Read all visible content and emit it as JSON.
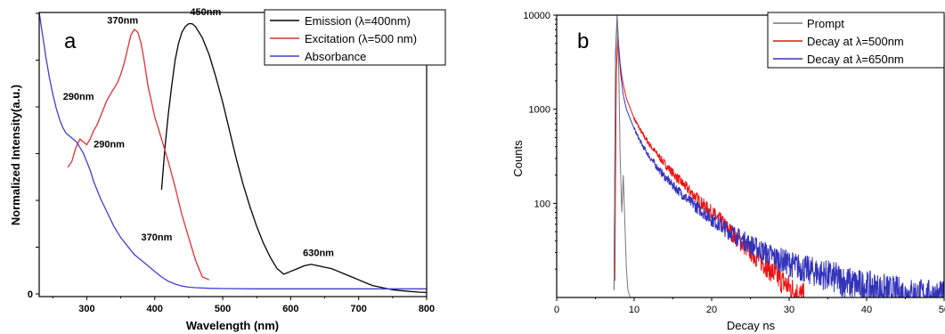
{
  "chart_data": [
    {
      "type": "line",
      "panel_label": "a",
      "xlabel": "Wavelength (nm)",
      "ylabel": "Normalized Intensity(a.u.)",
      "xlim": [
        230,
        800
      ],
      "ylim": [
        0,
        1.0
      ],
      "x_ticks": [
        "300",
        "400",
        "500",
        "600",
        "700",
        "800"
      ],
      "y_ticks": [
        "0"
      ],
      "legend_position": "top-right",
      "series": [
        {
          "name": "Emission (λ=400nm)",
          "color": "#000000",
          "x": [
            410,
            415,
            420,
            425,
            430,
            435,
            440,
            445,
            450,
            455,
            460,
            465,
            470,
            480,
            490,
            500,
            510,
            520,
            530,
            540,
            550,
            560,
            570,
            580,
            590,
            600,
            610,
            620,
            630,
            640,
            650,
            660,
            670,
            680,
            690,
            700,
            710,
            720,
            730,
            740,
            750,
            760,
            770,
            780,
            790,
            800
          ],
          "y": [
            0.37,
            0.52,
            0.64,
            0.74,
            0.83,
            0.89,
            0.93,
            0.95,
            0.96,
            0.96,
            0.95,
            0.93,
            0.91,
            0.85,
            0.77,
            0.68,
            0.58,
            0.48,
            0.39,
            0.31,
            0.24,
            0.18,
            0.13,
            0.09,
            0.07,
            0.08,
            0.09,
            0.1,
            0.105,
            0.1,
            0.095,
            0.09,
            0.08,
            0.07,
            0.06,
            0.05,
            0.04,
            0.03,
            0.025,
            0.02,
            0.015,
            0.012,
            0.01,
            0.008,
            0.006,
            0.005
          ]
        },
        {
          "name": "Excitation (λ=500 nm)",
          "color": "#e03030",
          "x": [
            272,
            278,
            284,
            290,
            295,
            300,
            305,
            310,
            315,
            320,
            325,
            330,
            335,
            340,
            345,
            350,
            355,
            360,
            365,
            370,
            375,
            380,
            385,
            390,
            400,
            410,
            420,
            430,
            440,
            450,
            460,
            470,
            480
          ],
          "y": [
            0.45,
            0.47,
            0.52,
            0.55,
            0.54,
            0.53,
            0.55,
            0.58,
            0.6,
            0.63,
            0.66,
            0.69,
            0.71,
            0.73,
            0.75,
            0.78,
            0.82,
            0.87,
            0.92,
            0.94,
            0.93,
            0.89,
            0.82,
            0.74,
            0.63,
            0.55,
            0.47,
            0.38,
            0.28,
            0.2,
            0.12,
            0.06,
            0.05
          ]
        },
        {
          "name": "Absorbance",
          "color": "#3f3fd0",
          "x": [
            230,
            235,
            240,
            245,
            250,
            255,
            260,
            265,
            270,
            275,
            280,
            285,
            290,
            295,
            300,
            305,
            310,
            320,
            330,
            340,
            350,
            360,
            370,
            380,
            390,
            400,
            410,
            420,
            430,
            440,
            450,
            460,
            480,
            500,
            550,
            600,
            650,
            700,
            750,
            800
          ],
          "y": [
            1.0,
            0.92,
            0.84,
            0.77,
            0.71,
            0.66,
            0.62,
            0.59,
            0.57,
            0.56,
            0.55,
            0.54,
            0.52,
            0.5,
            0.47,
            0.44,
            0.4,
            0.34,
            0.29,
            0.24,
            0.2,
            0.17,
            0.14,
            0.12,
            0.1,
            0.08,
            0.06,
            0.045,
            0.035,
            0.028,
            0.024,
            0.022,
            0.02,
            0.019,
            0.018,
            0.018,
            0.018,
            0.018,
            0.018,
            0.018
          ]
        }
      ],
      "annotations": [
        {
          "text": "370nm",
          "x": 330,
          "y": 0.96
        },
        {
          "text": "450nm",
          "x": 452,
          "y": 0.99
        },
        {
          "text": "290nm",
          "x": 265,
          "y": 0.69
        },
        {
          "text": "290nm",
          "x": 310,
          "y": 0.52
        },
        {
          "text": "370nm",
          "x": 380,
          "y": 0.19
        },
        {
          "text": "630nm",
          "x": 618,
          "y": 0.135
        }
      ]
    },
    {
      "type": "line",
      "panel_label": "b",
      "xlabel": "Decay ns",
      "ylabel": "Counts",
      "xlim": [
        0,
        50
      ],
      "ylim": [
        10,
        10000
      ],
      "y_scale": "log",
      "x_ticks": [
        "0",
        "10",
        "20",
        "30",
        "40",
        "50"
      ],
      "y_ticks": [
        "100",
        "1000",
        "10000"
      ],
      "legend_position": "top-right",
      "series": [
        {
          "name": "Prompt",
          "color": "#777777",
          "x": [
            7.4,
            7.6,
            7.8,
            8.0,
            8.2,
            8.4,
            8.6,
            8.8,
            9.0,
            9.2,
            9.5
          ],
          "y": [
            12,
            3000,
            10000,
            3000,
            300,
            80,
            200,
            60,
            20,
            12,
            10
          ]
        },
        {
          "name": "Decay at λ=500nm",
          "color": "#ee1111",
          "x": [
            7.5,
            7.7,
            7.9,
            8.2,
            8.5,
            9,
            10,
            11,
            12,
            13,
            14,
            15,
            16,
            17,
            18,
            19,
            20,
            21,
            22,
            23,
            24,
            25,
            26,
            27,
            28,
            29,
            30,
            31,
            32
          ],
          "y": [
            15,
            2500,
            6000,
            3000,
            2000,
            1300,
            800,
            560,
            420,
            330,
            260,
            210,
            170,
            140,
            115,
            95,
            80,
            67,
            55,
            45,
            37,
            31,
            26,
            22,
            18,
            15,
            13,
            11,
            10
          ]
        },
        {
          "name": "Decay at λ=650nm",
          "color": "#3333bb",
          "x": [
            7.4,
            7.6,
            7.8,
            8.0,
            8.3,
            8.6,
            9,
            10,
            11,
            12,
            13,
            14,
            15,
            16,
            17,
            18,
            19,
            20,
            22,
            24,
            26,
            28,
            30,
            32,
            34,
            36,
            38,
            40,
            42,
            45,
            48,
            50
          ],
          "y": [
            12,
            4000,
            10000,
            4500,
            2200,
            1400,
            1000,
            620,
            420,
            310,
            240,
            190,
            155,
            130,
            108,
            92,
            80,
            68,
            52,
            41,
            33,
            27,
            23,
            20,
            18,
            16,
            14,
            13,
            12,
            11,
            10.5,
            10
          ]
        }
      ]
    }
  ]
}
